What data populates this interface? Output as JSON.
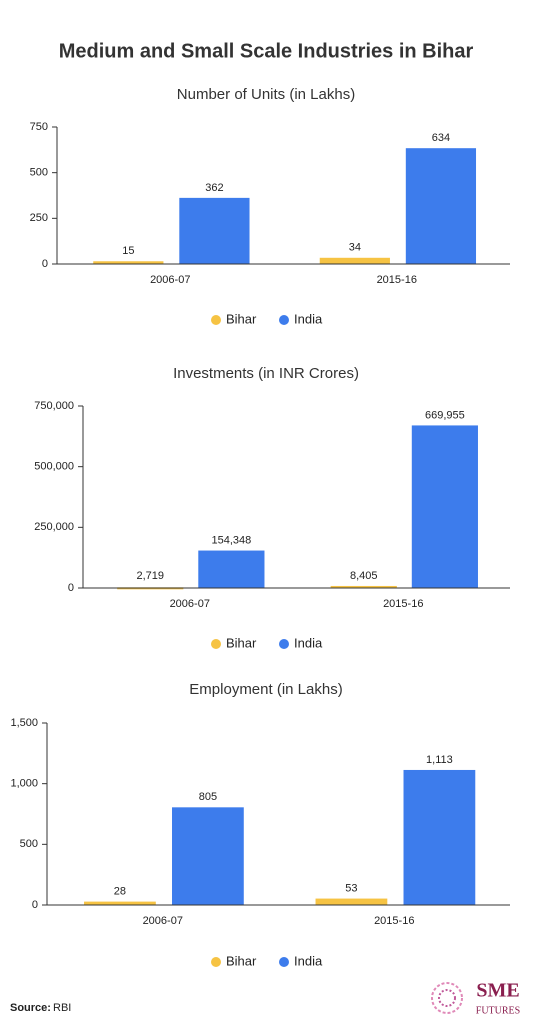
{
  "title": "Medium and Small Scale Industries in Bihar",
  "chart_data": [
    {
      "type": "bar",
      "title": "Number of Units (in Lakhs)",
      "categories": [
        "2006-07",
        "2015-16"
      ],
      "series": [
        {
          "name": "Bihar",
          "color": "#f6c343",
          "values": [
            15,
            34
          ]
        },
        {
          "name": "India",
          "color": "#3d7cec",
          "values": [
            362,
            634
          ]
        }
      ],
      "ylim": [
        0,
        750
      ],
      "yticks": [
        0,
        250,
        500,
        750
      ]
    },
    {
      "type": "bar",
      "title": "Investments (in INR Crores)",
      "categories": [
        "2006-07",
        "2015-16"
      ],
      "series": [
        {
          "name": "Bihar",
          "color": "#f6c343",
          "values": [
            2719,
            8405
          ],
          "value_labels": [
            "2,719",
            "8,405"
          ]
        },
        {
          "name": "India",
          "color": "#3d7cec",
          "values": [
            154348,
            669955
          ],
          "value_labels": [
            "154,348",
            "669,955"
          ]
        }
      ],
      "ylim": [
        0,
        750000
      ],
      "yticks": [
        0,
        {
          "value": 250000,
          "label": "250,000"
        },
        {
          "value": 500000,
          "label": "500,000"
        },
        {
          "value": 750000,
          "label": "750,000"
        }
      ]
    },
    {
      "type": "bar",
      "title": "Employment (in Lakhs)",
      "categories": [
        "2006-07",
        "2015-16"
      ],
      "series": [
        {
          "name": "Bihar",
          "color": "#f6c343",
          "values": [
            28,
            53
          ]
        },
        {
          "name": "India",
          "color": "#3d7cec",
          "values": [
            805,
            1113
          ],
          "value_labels": [
            "805",
            "1,113"
          ]
        }
      ],
      "ylim": [
        0,
        1500
      ],
      "yticks": [
        0,
        500,
        {
          "value": 1000,
          "label": "1,000"
        },
        {
          "value": 1500,
          "label": "1,500"
        }
      ]
    }
  ],
  "source": {
    "label": "Source:",
    "text": "RBI"
  },
  "logo": {
    "top": "SME",
    "bottom": "FUTURES"
  }
}
